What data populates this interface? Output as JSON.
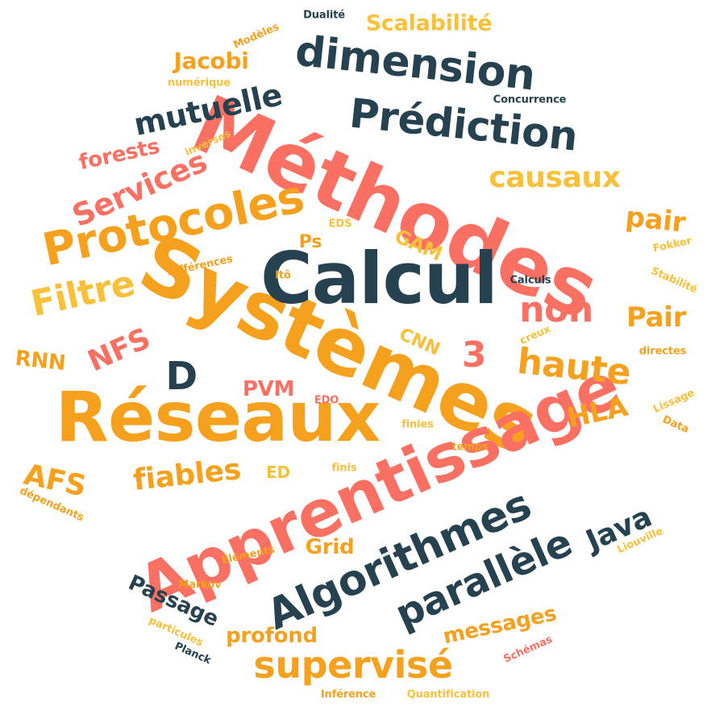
{
  "palette": {
    "coral": "#fa7062",
    "orange": "#f5a11d",
    "navy": "#264250",
    "yellow": "#f9c03a",
    "background": "#ffffff"
  },
  "words": [
    "Méthodes",
    "Systèmes",
    "Réseaux",
    "Apprentissage",
    "Calcul",
    "Algorithmes",
    "Protocoles",
    "dimension",
    "Prédiction",
    "parallèle",
    "supervisé",
    "haute",
    "non",
    "Filtre",
    "mutuelle",
    "Services",
    "causaux",
    "Pair",
    "pair",
    "Java",
    "fiables",
    "Passage",
    "NFS",
    "AFS",
    "HLA",
    "D",
    "3",
    "messages",
    "profond",
    "Scalabilité",
    "Jacobi",
    "forests",
    "RNN",
    "PVM",
    "Grid",
    "GAM",
    "CNN",
    "ED",
    "Ps",
    "Dualité",
    "Modèles",
    "numérique",
    "Concurrence",
    "inverses",
    "EDS",
    "Fokker",
    "Différences",
    "Itô",
    "Calculs",
    "Stabilité",
    "creux",
    "directes",
    "EDO",
    "Lissage",
    "finies",
    "Data",
    "temps",
    "finis",
    "dépendants",
    "Liouville",
    "Éléments",
    "Markov",
    "particules",
    "Planck",
    "Schémas",
    "Inférence",
    "Quantification"
  ]
}
